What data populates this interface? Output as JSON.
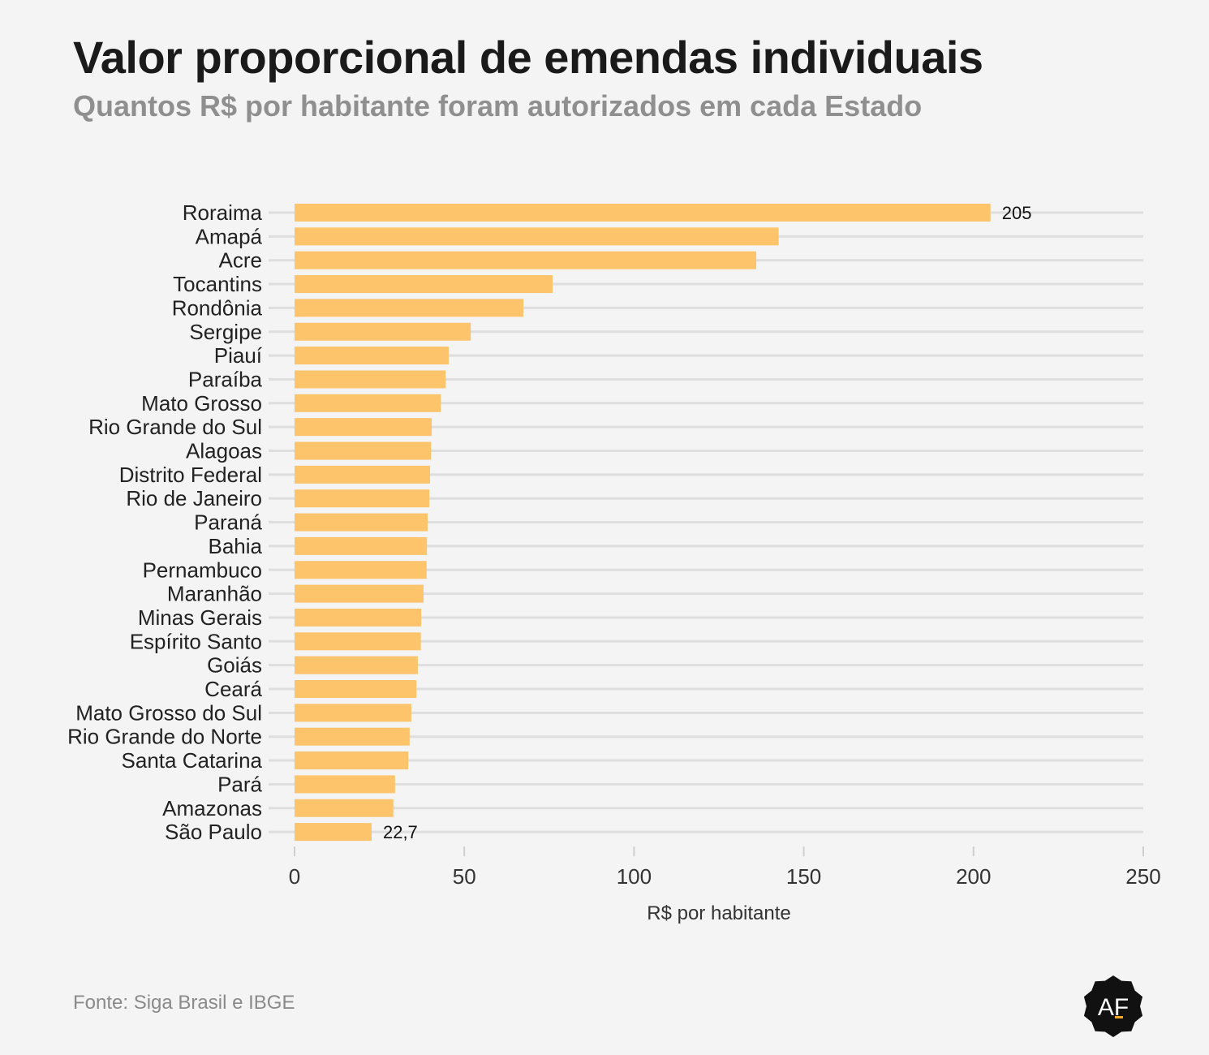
{
  "header": {
    "title": "Valor proporcional de emendas individuais",
    "subtitle": "Quantos R$ por habitante foram autorizados em cada Estado"
  },
  "footer": {
    "source": "Fonte: Siga Brasil e IBGE",
    "logo_text": "AF"
  },
  "colors": {
    "bar": "#fdc46c",
    "grid": "#dedede",
    "background": "#f4f4f4",
    "logo_bg": "#111111",
    "logo_accent": "#f5a623"
  },
  "chart_data": {
    "type": "bar",
    "orientation": "horizontal",
    "xlabel": "R$ por habitante",
    "xlim": [
      0,
      250
    ],
    "xticks": [
      "0",
      "50",
      "100",
      "150",
      "200",
      "250"
    ],
    "grid": true,
    "categories": [
      "Roraima",
      "Amapá",
      "Acre",
      "Tocantins",
      "Rondônia",
      "Sergipe",
      "Piauí",
      "Paraíba",
      "Mato Grosso",
      "Rio Grande do Sul",
      "Alagoas",
      "Distrito Federal",
      "Rio de Janeiro",
      "Paraná",
      "Bahia",
      "Pernambuco",
      "Maranhão",
      "Minas Gerais",
      "Espírito Santo",
      "Goiás",
      "Ceará",
      "Mato Grosso do Sul",
      "Rio Grande do Norte",
      "Santa Catarina",
      "Pará",
      "Amazonas",
      "São Paulo"
    ],
    "values": [
      205,
      142.6,
      136,
      76,
      67.4,
      51.9,
      45.4,
      44.5,
      43.1,
      40.4,
      40.2,
      39.9,
      39.7,
      39.2,
      39.0,
      38.9,
      38.0,
      37.3,
      37.2,
      36.3,
      35.9,
      34.4,
      33.9,
      33.5,
      29.6,
      29.1,
      22.7
    ],
    "data_labels": [
      {
        "index": 0,
        "text": "205"
      },
      {
        "index": 26,
        "text": "22,7"
      }
    ]
  }
}
